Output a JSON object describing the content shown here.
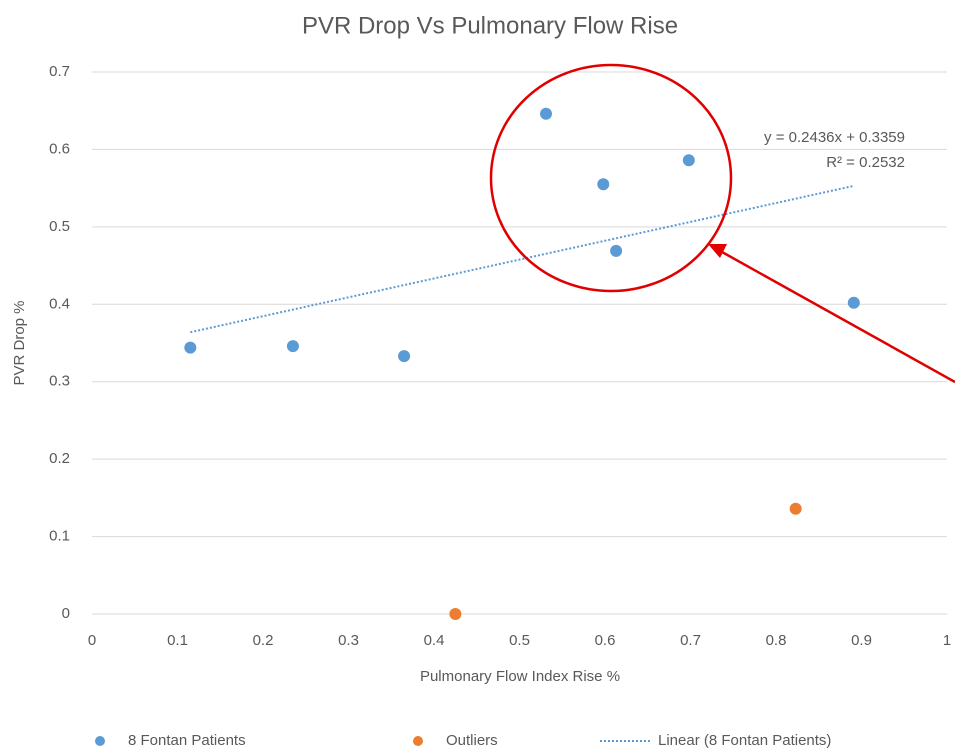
{
  "chart_data": {
    "type": "scatter",
    "title": "PVR Drop Vs Pulmonary Flow Rise",
    "x_label": "Pulmonary Flow Index Rise %",
    "y_label": "PVR Drop %",
    "xlim": [
      0,
      1
    ],
    "ylim": [
      0,
      0.7
    ],
    "xticks": [
      0,
      0.1,
      0.2,
      0.3,
      0.4,
      0.5,
      0.6,
      0.7,
      0.8,
      0.9,
      1
    ],
    "yticks": [
      0,
      0.1,
      0.2,
      0.3,
      0.4,
      0.5,
      0.6,
      0.7
    ],
    "grid": true,
    "legend": "bottom",
    "series": [
      {
        "name": "8 Fontan Patients",
        "color": "#5b9bd5",
        "x": [
          0.115,
          0.235,
          0.365,
          0.531,
          0.598,
          0.613,
          0.698,
          0.891
        ],
        "values": [
          0.344,
          0.346,
          0.333,
          0.646,
          0.555,
          0.469,
          0.586,
          0.402
        ]
      },
      {
        "name": "Outliers",
        "color": "#ed7d31",
        "x": [
          0.425,
          0.823
        ],
        "values": [
          0,
          0.136
        ]
      }
    ],
    "trendline": {
      "name": "Linear (8 Fontan Patients)",
      "color": "#5b9bd5",
      "slope": 0.2436,
      "intercept": 0.3359,
      "equation": "y = 0.2436x + 0.3359",
      "r_squared": "R² = 0.2532"
    }
  }
}
